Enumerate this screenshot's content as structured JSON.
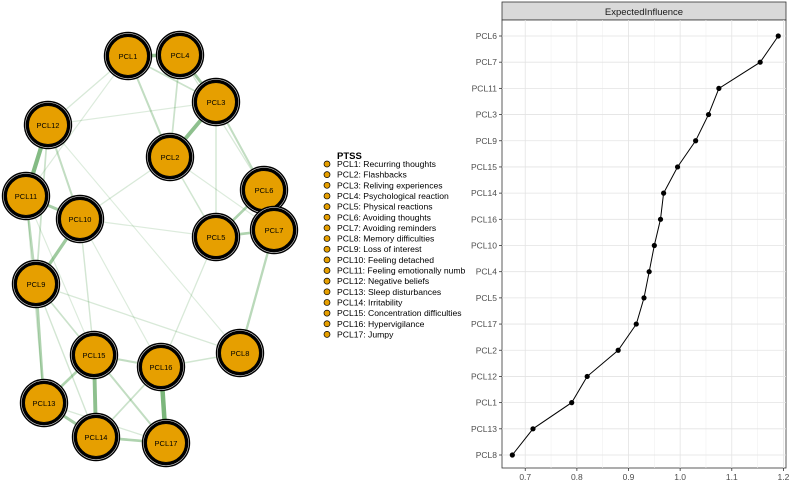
{
  "chart_data": [
    {
      "type": "network",
      "title": "",
      "legend_title": "PTSS",
      "node_color": "#E69F00",
      "edge_color": "#2E8B2E",
      "nodes": [
        "PCL1",
        "PCL2",
        "PCL3",
        "PCL4",
        "PCL5",
        "PCL6",
        "PCL7",
        "PCL8",
        "PCL9",
        "PCL10",
        "PCL11",
        "PCL12",
        "PCL13",
        "PCL14",
        "PCL15",
        "PCL16",
        "PCL17"
      ],
      "legend": [
        "PCL1: Recurring thoughts",
        "PCL2: Flashbacks",
        "PCL3: Reliving experiences",
        "PCL4: Psychological reaction",
        "PCL5: Physical reactions",
        "PCL6: Avoiding thoughts",
        "PCL7: Avoiding reminders",
        "PCL8: Memory difficulties",
        "PCL9: Loss of interest",
        "PCL10: Feeling detached",
        "PCL11: Feeling emotionally numb",
        "PCL12: Negative beliefs",
        "PCL13: Sleep disturbances",
        "PCL14: Irritability",
        "PCL15: Concentration difficulties",
        "PCL16: Hypervigilance",
        "PCL17: Jumpy"
      ],
      "edges": [
        {
          "from": "PCL6",
          "to": "PCL7",
          "weight": 1.0
        },
        {
          "from": "PCL11",
          "to": "PCL12",
          "weight": 0.55
        },
        {
          "from": "PCL16",
          "to": "PCL17",
          "weight": 0.6
        },
        {
          "from": "PCL15",
          "to": "PCL14",
          "weight": 0.5
        },
        {
          "from": "PCL2",
          "to": "PCL3",
          "weight": 0.5
        },
        {
          "from": "PCL1",
          "to": "PCL4",
          "weight": 0.45
        },
        {
          "from": "PCL4",
          "to": "PCL3",
          "weight": 0.35
        },
        {
          "from": "PCL11",
          "to": "PCL10",
          "weight": 0.35
        },
        {
          "from": "PCL10",
          "to": "PCL9",
          "weight": 0.4
        },
        {
          "from": "PCL9",
          "to": "PCL13",
          "weight": 0.3
        },
        {
          "from": "PCL13",
          "to": "PCL14",
          "weight": 0.35
        },
        {
          "from": "PCL14",
          "to": "PCL17",
          "weight": 0.3
        },
        {
          "from": "PCL13",
          "to": "PCL15",
          "weight": 0.3
        },
        {
          "from": "PCL5",
          "to": "PCL6",
          "weight": 0.3
        },
        {
          "from": "PCL5",
          "to": "PCL7",
          "weight": 0.3
        },
        {
          "from": "PCL7",
          "to": "PCL8",
          "weight": 0.25
        },
        {
          "from": "PCL3",
          "to": "PCL6",
          "weight": 0.2
        },
        {
          "from": "PCL11",
          "to": "PCL9",
          "weight": 0.25
        },
        {
          "from": "PCL12",
          "to": "PCL10",
          "weight": 0.2
        },
        {
          "from": "PCL1",
          "to": "PCL2",
          "weight": 0.2
        },
        {
          "from": "PCL1",
          "to": "PCL3",
          "weight": 0.15
        },
        {
          "from": "PCL15",
          "to": "PCL16",
          "weight": 0.2
        },
        {
          "from": "PCL15",
          "to": "PCL17",
          "weight": 0.2
        },
        {
          "from": "PCL9",
          "to": "PCL15",
          "weight": 0.15
        },
        {
          "from": "PCL14",
          "to": "PCL16",
          "weight": 0.15
        },
        {
          "from": "PCL12",
          "to": "PCL9",
          "weight": 0.15
        },
        {
          "from": "PCL4",
          "to": "PCL2",
          "weight": 0.15
        },
        {
          "from": "PCL2",
          "to": "PCL5",
          "weight": 0.12
        },
        {
          "from": "PCL10",
          "to": "PCL15",
          "weight": 0.1
        },
        {
          "from": "PCL16",
          "to": "PCL8",
          "weight": 0.12
        },
        {
          "from": "PCL12",
          "to": "PCL1",
          "weight": 0.08
        },
        {
          "from": "PCL10",
          "to": "PCL2",
          "weight": 0.08
        },
        {
          "from": "PCL9",
          "to": "PCL8",
          "weight": 0.08
        },
        {
          "from": "PCL11",
          "to": "PCL13",
          "weight": 0.1
        },
        {
          "from": "PCL5",
          "to": "PCL16",
          "weight": 0.08
        },
        {
          "from": "PCL3",
          "to": "PCL5",
          "weight": 0.1
        },
        {
          "from": "PCL12",
          "to": "PCL3",
          "weight": 0.06
        },
        {
          "from": "PCL10",
          "to": "PCL5",
          "weight": 0.06
        },
        {
          "from": "PCL1",
          "to": "PCL11",
          "weight": 0.06
        },
        {
          "from": "PCL4",
          "to": "PCL6",
          "weight": 0.08
        },
        {
          "from": "PCL2",
          "to": "PCL7",
          "weight": 0.06
        },
        {
          "from": "PCL9",
          "to": "PCL14",
          "weight": 0.1
        },
        {
          "from": "PCL11",
          "to": "PCL15",
          "weight": 0.06
        },
        {
          "from": "PCL10",
          "to": "PCL16",
          "weight": 0.06
        },
        {
          "from": "PCL12",
          "to": "PCL8",
          "weight": 0.05
        },
        {
          "from": "PCL13",
          "to": "PCL17",
          "weight": 0.08
        }
      ]
    },
    {
      "type": "dot-line",
      "strip_label": "ExpectedInfluence",
      "categories": [
        "PCL6",
        "PCL7",
        "PCL11",
        "PCL3",
        "PCL9",
        "PCL15",
        "PCL14",
        "PCL16",
        "PCL10",
        "PCL4",
        "PCL5",
        "PCL17",
        "PCL2",
        "PCL12",
        "PCL1",
        "PCL13",
        "PCL8"
      ],
      "values": [
        1.19,
        1.155,
        1.075,
        1.055,
        1.03,
        0.995,
        0.968,
        0.962,
        0.95,
        0.94,
        0.93,
        0.915,
        0.88,
        0.82,
        0.79,
        0.715,
        0.675
      ],
      "xlim": [
        0.655,
        1.205
      ],
      "xticks": [
        "0.7",
        "0.8",
        "0.9",
        "1.0",
        "1.1",
        "1.2"
      ],
      "xlabel": "",
      "ylabel": "",
      "grid": true
    }
  ]
}
